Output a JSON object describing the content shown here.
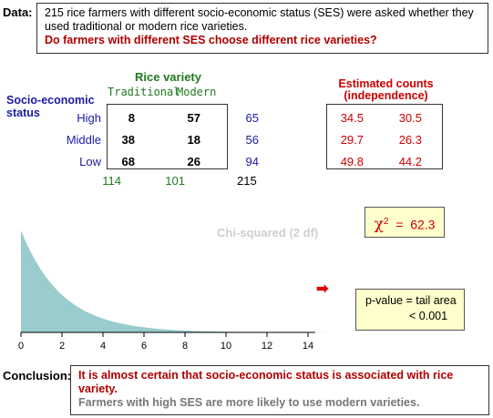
{
  "data_section": {
    "label": "Data:",
    "line1": "215 rice farmers with different socio-economic status (SES) were asked whether they used traditional or modern rice varieties.",
    "question": "Do farmers with different SES choose different rice varieties?"
  },
  "table": {
    "column_title": "Rice variety",
    "columns": [
      "Traditional",
      "Modern"
    ],
    "row_title": "Socio-economic status",
    "rows": [
      {
        "label": "High",
        "values": [
          "8",
          "57"
        ],
        "total": "65"
      },
      {
        "label": "Middle",
        "values": [
          "38",
          "18"
        ],
        "total": "56"
      },
      {
        "label": "Low",
        "values": [
          "68",
          "26"
        ],
        "total": "94"
      }
    ],
    "column_totals": [
      "114",
      "101"
    ],
    "grand_total": "215"
  },
  "expected": {
    "title_line1": "Estimated counts",
    "title_line2": "(independence)",
    "rows": [
      [
        "34.5",
        "30.5"
      ],
      [
        "29.7",
        "26.3"
      ],
      [
        "49.8",
        "44.2"
      ]
    ]
  },
  "chi_square": {
    "symbol": "χ",
    "superscript": "2",
    "equals": "=",
    "value": "62.3"
  },
  "pvalue": {
    "line1": "p-value  =  tail area",
    "line2": "<  0.001"
  },
  "arrow": "➡",
  "conclusion": {
    "label": "Conclusion:",
    "line1": "It is almost certain that socio-economic status is associated with rice variety.",
    "line2": "Farmers with high SES are more likely to use modern varieties."
  },
  "chart_data": {
    "type": "area",
    "title": "Chi-squared (2 df)",
    "distribution": "chi-squared, 2 degrees of freedom",
    "xlim": [
      0,
      15
    ],
    "xticks": [
      "0",
      "2",
      "4",
      "6",
      "8",
      "10",
      "12",
      "14"
    ],
    "fill_color": "#99cccc"
  }
}
